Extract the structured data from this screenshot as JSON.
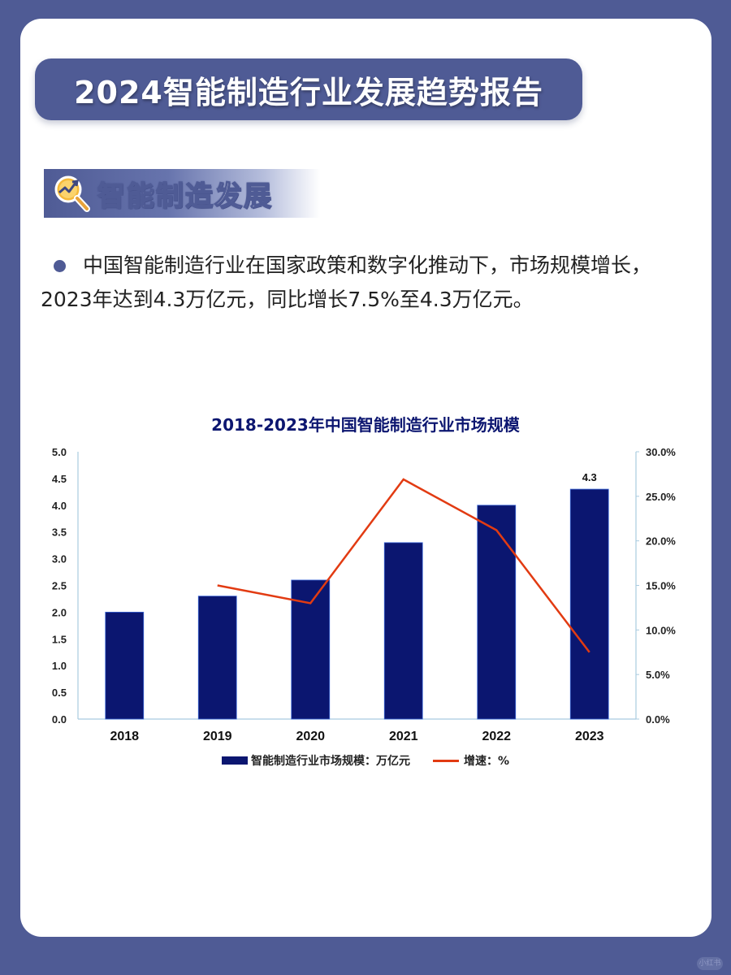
{
  "header": {
    "title": "2024智能制造行业发展趋势报告"
  },
  "section": {
    "icon": "magnifier-trend-icon",
    "title": "智能制造发展"
  },
  "paragraph": {
    "bullet_icon": "bullet-dot",
    "text": "中国智能制造行业在国家政策和数字化推动下，市场规模增长，2023年达到4.3万亿元，同比增长7.5%至4.3万亿元。"
  },
  "colors": {
    "background": "#4f5b95",
    "bar": "#0b1670",
    "line": "#e23b12",
    "chart_title": "#0c1670",
    "axis": "#a9cbe0"
  },
  "chart_data": {
    "type": "bar+line",
    "title": "2018-2023年中国智能制造行业市场规模",
    "categories": [
      "2018",
      "2019",
      "2020",
      "2021",
      "2022",
      "2023"
    ],
    "series": [
      {
        "name": "智能制造行业市场规模：万亿元",
        "type": "bar",
        "axis": "left",
        "values": [
          2.0,
          2.3,
          2.6,
          3.3,
          4.0,
          4.3
        ]
      },
      {
        "name": "增速：%",
        "type": "line",
        "axis": "right",
        "values": [
          null,
          15.0,
          13.0,
          26.9,
          21.2,
          7.5
        ]
      }
    ],
    "data_labels": [
      {
        "category": "2023",
        "text": "4.3"
      }
    ],
    "left_axis": {
      "ylim": [
        0,
        5
      ],
      "ticks": [
        "0.0",
        "0.5",
        "1.0",
        "1.5",
        "2.0",
        "2.5",
        "3.0",
        "3.5",
        "4.0",
        "4.5",
        "5.0"
      ]
    },
    "right_axis": {
      "ylim": [
        0,
        30
      ],
      "ticks": [
        "0.0%",
        "5.0%",
        "10.0%",
        "15.0%",
        "20.0%",
        "25.0%",
        "30.0%"
      ]
    },
    "grid": false,
    "legend_position": "bottom",
    "legend": [
      "智能制造行业市场规模：万亿元",
      "增速：%"
    ]
  },
  "watermark": "小红书"
}
